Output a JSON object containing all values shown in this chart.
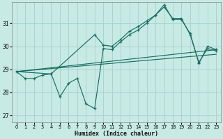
{
  "xlabel": "Humidex (Indice chaleur)",
  "bg_color": "#c8eae4",
  "grid_color": "#aad4ce",
  "line_color": "#1a6e64",
  "xlim": [
    -0.5,
    23.5
  ],
  "ylim": [
    26.7,
    31.9
  ],
  "xticks": [
    0,
    1,
    2,
    3,
    4,
    5,
    6,
    7,
    8,
    9,
    10,
    11,
    12,
    13,
    14,
    15,
    16,
    17,
    18,
    19,
    20,
    21,
    22,
    23
  ],
  "yticks": [
    27,
    28,
    29,
    30,
    31
  ],
  "line1_x": [
    0,
    1,
    2,
    3,
    4,
    5,
    6,
    7,
    8,
    9,
    10,
    11,
    12,
    13,
    14,
    15,
    16,
    17,
    18,
    19,
    20,
    21,
    22,
    23
  ],
  "line1_y": [
    28.9,
    28.6,
    28.6,
    28.75,
    28.8,
    27.8,
    28.4,
    28.6,
    27.5,
    27.3,
    29.9,
    29.85,
    30.2,
    30.5,
    30.7,
    31.0,
    31.35,
    31.7,
    31.2,
    31.2,
    30.5,
    29.3,
    29.9,
    29.8
  ],
  "line2_x": [
    0,
    4,
    9,
    10,
    11,
    12,
    13,
    14,
    15,
    16,
    17,
    18,
    19,
    20,
    21,
    22,
    23
  ],
  "line2_y": [
    28.9,
    28.8,
    30.5,
    30.05,
    30.0,
    30.3,
    30.65,
    30.85,
    31.1,
    31.35,
    31.8,
    31.15,
    31.15,
    30.55,
    29.25,
    30.0,
    29.85
  ],
  "line3_x": [
    0,
    23
  ],
  "line3_y": [
    28.9,
    29.65
  ],
  "line4_x": [
    0,
    23
  ],
  "line4_y": [
    28.9,
    29.85
  ]
}
